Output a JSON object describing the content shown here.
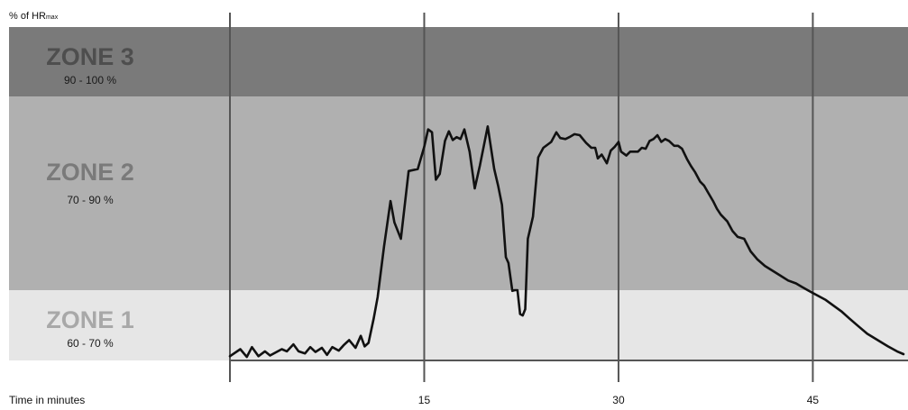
{
  "chart_data": {
    "type": "line",
    "ylabel_prefix": "% of HR",
    "ylabel_subscript": "max",
    "xlabel": "Time in minutes",
    "xlim": [
      0,
      52
    ],
    "ylim": [
      60,
      110
    ],
    "x_ticks": [
      {
        "value": 15,
        "label": "15"
      },
      {
        "value": 30,
        "label": "30"
      },
      {
        "value": 45,
        "label": "45"
      }
    ],
    "vertical_gridlines": [
      0,
      15,
      30,
      45
    ],
    "grid": "vertical",
    "zones": [
      {
        "name": "ZONE 1",
        "range_label": "60 - 70 %",
        "min": 60,
        "max": 70,
        "band_color": "#e6e6e6",
        "text_color": "#a8a8a8"
      },
      {
        "name": "ZONE 2",
        "range_label": "70 - 90 %",
        "min": 70,
        "max": 90,
        "band_color": "#b0b0b0",
        "text_color": "#7a7a7a"
      },
      {
        "name": "ZONE 3",
        "range_label": "90 - 100 %",
        "min": 90,
        "max": 100,
        "band_color": "#7a7a7a",
        "text_color": "#4e4e4e"
      }
    ],
    "series": [
      {
        "line_color": "#111111",
        "points": [
          [
            0.0,
            60.6
          ],
          [
            0.8,
            61.6
          ],
          [
            1.3,
            60.5
          ],
          [
            1.7,
            61.9
          ],
          [
            2.2,
            60.6
          ],
          [
            2.7,
            61.3
          ],
          [
            3.1,
            60.7
          ],
          [
            3.6,
            61.2
          ],
          [
            4.0,
            61.6
          ],
          [
            4.4,
            61.3
          ],
          [
            4.9,
            62.3
          ],
          [
            5.3,
            61.3
          ],
          [
            5.8,
            61.0
          ],
          [
            6.2,
            61.9
          ],
          [
            6.6,
            61.2
          ],
          [
            7.1,
            61.8
          ],
          [
            7.5,
            60.8
          ],
          [
            7.9,
            61.9
          ],
          [
            8.4,
            61.4
          ],
          [
            8.8,
            62.2
          ],
          [
            9.2,
            62.9
          ],
          [
            9.7,
            61.8
          ],
          [
            10.1,
            63.5
          ],
          [
            10.4,
            62.0
          ],
          [
            10.7,
            62.5
          ],
          [
            11.1,
            66.0
          ],
          [
            11.4,
            69.0
          ],
          [
            11.9,
            74.5
          ],
          [
            12.4,
            79.2
          ],
          [
            12.7,
            77.0
          ],
          [
            13.2,
            75.3
          ],
          [
            13.8,
            82.3
          ],
          [
            14.5,
            82.5
          ],
          [
            15.0,
            84.8
          ],
          [
            15.3,
            86.6
          ],
          [
            15.6,
            86.3
          ],
          [
            15.9,
            81.4
          ],
          [
            16.2,
            82.0
          ],
          [
            16.6,
            85.4
          ],
          [
            16.9,
            86.4
          ],
          [
            17.2,
            85.5
          ],
          [
            17.5,
            85.8
          ],
          [
            17.8,
            85.6
          ],
          [
            18.1,
            86.6
          ],
          [
            18.5,
            84.3
          ],
          [
            18.9,
            80.5
          ],
          [
            19.3,
            82.9
          ],
          [
            19.9,
            86.9
          ],
          [
            20.4,
            82.5
          ],
          [
            20.7,
            80.8
          ],
          [
            21.0,
            78.8
          ],
          [
            21.3,
            73.4
          ],
          [
            21.5,
            72.8
          ],
          [
            21.8,
            69.9
          ],
          [
            22.0,
            70.0
          ],
          [
            22.2,
            70.0
          ],
          [
            22.4,
            66.6
          ],
          [
            22.6,
            66.4
          ],
          [
            22.8,
            67.3
          ],
          [
            23.0,
            75.3
          ],
          [
            23.4,
            77.6
          ],
          [
            23.8,
            83.7
          ],
          [
            24.2,
            84.7
          ],
          [
            24.8,
            85.3
          ],
          [
            25.2,
            86.3
          ],
          [
            25.5,
            85.7
          ],
          [
            25.9,
            85.6
          ],
          [
            26.2,
            85.8
          ],
          [
            26.6,
            86.1
          ],
          [
            27.0,
            86.0
          ],
          [
            27.5,
            85.2
          ],
          [
            27.9,
            84.7
          ],
          [
            28.2,
            84.7
          ],
          [
            28.4,
            83.6
          ],
          [
            28.7,
            84.0
          ],
          [
            29.1,
            83.1
          ],
          [
            29.4,
            84.4
          ],
          [
            29.7,
            84.8
          ],
          [
            30.0,
            85.3
          ],
          [
            30.2,
            84.3
          ],
          [
            30.6,
            83.9
          ],
          [
            30.9,
            84.3
          ],
          [
            31.2,
            84.3
          ],
          [
            31.5,
            84.3
          ],
          [
            31.8,
            84.7
          ],
          [
            32.1,
            84.6
          ],
          [
            32.4,
            85.4
          ],
          [
            32.7,
            85.6
          ],
          [
            33.0,
            86.0
          ],
          [
            33.3,
            85.3
          ],
          [
            33.6,
            85.6
          ],
          [
            33.9,
            85.4
          ],
          [
            34.3,
            84.9
          ],
          [
            34.6,
            84.9
          ],
          [
            34.9,
            84.6
          ],
          [
            35.3,
            83.5
          ],
          [
            35.6,
            82.8
          ],
          [
            35.9,
            82.2
          ],
          [
            36.3,
            81.2
          ],
          [
            36.6,
            80.8
          ],
          [
            36.9,
            80.1
          ],
          [
            37.3,
            79.2
          ],
          [
            37.6,
            78.4
          ],
          [
            37.9,
            77.8
          ],
          [
            38.4,
            77.1
          ],
          [
            38.8,
            76.1
          ],
          [
            39.2,
            75.5
          ],
          [
            39.7,
            75.3
          ],
          [
            40.2,
            74.0
          ],
          [
            40.7,
            73.2
          ],
          [
            41.3,
            72.5
          ],
          [
            41.9,
            72.0
          ],
          [
            42.5,
            71.5
          ],
          [
            43.1,
            71.0
          ],
          [
            43.7,
            70.7
          ],
          [
            44.2,
            70.3
          ],
          [
            44.6,
            70.0
          ],
          [
            45.0,
            69.6
          ],
          [
            45.5,
            69.1
          ],
          [
            46.0,
            68.6
          ],
          [
            46.6,
            67.8
          ],
          [
            47.2,
            67.0
          ],
          [
            47.8,
            66.0
          ],
          [
            48.5,
            64.9
          ],
          [
            49.2,
            63.8
          ],
          [
            50.0,
            62.9
          ],
          [
            50.8,
            62.0
          ],
          [
            51.5,
            61.3
          ],
          [
            52.0,
            60.9
          ]
        ]
      }
    ]
  }
}
